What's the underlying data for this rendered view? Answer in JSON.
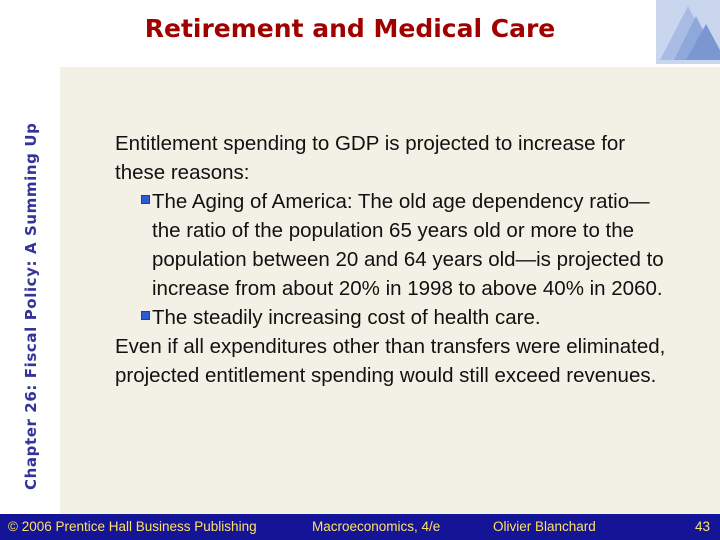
{
  "slide": {
    "side_title": "Chapter 26: Fiscal Policy: A Summing Up",
    "title": "Retirement and Medical Care",
    "intro": "Entitlement spending to GDP is projected to increase for these reasons:",
    "bullets": [
      "The Aging of America:  The old age dependency ratio—the ratio of the population 65 years old or more to the population between 20 and 64 years old—is projected to increase from about 20% in 1998 to above 40% in 2060.",
      "The steadily increasing cost of health care."
    ],
    "conclusion": "Even if all expenditures other than transfers were eliminated, projected entitlement spending would still exceed revenues."
  },
  "footer": {
    "copyright": "© 2006 Prentice Hall Business Publishing",
    "book": "Macroeconomics, 4/e",
    "author": "Olivier Blanchard",
    "page": "43"
  },
  "colors": {
    "title": "#a00000",
    "side_title": "#33339a",
    "footer_bg": "#141497",
    "footer_text": "#ffe066",
    "panel": "#f3f1e6"
  },
  "icons": {
    "bullet": "square-bullet-icon",
    "corner": "decorative-cube-icon"
  }
}
